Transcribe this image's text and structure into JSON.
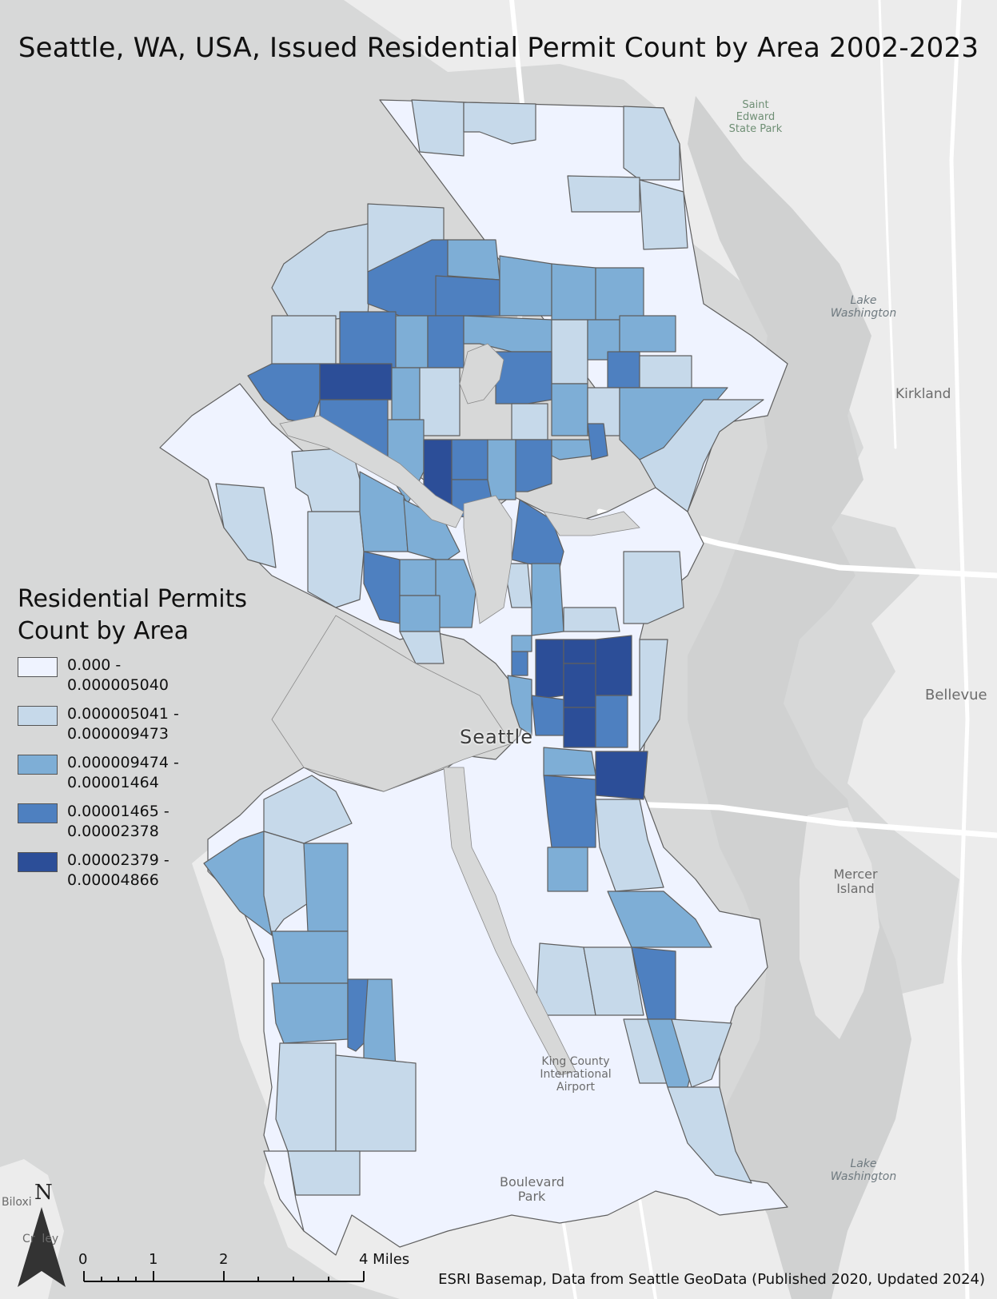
{
  "title": "Seattle, WA, USA, Issued Residential Permit Count by Area 2002-2023",
  "legend": {
    "title_line1": "Residential Permits",
    "title_line2": "Count by Area",
    "classes": [
      {
        "label": "0.000 - 0.000005040",
        "color": "#eff3ff"
      },
      {
        "label_line1": "0.000005041 -",
        "label_line2": "0.000009473",
        "color": "#c6d9ea"
      },
      {
        "label_line1": "0.000009474 -",
        "label_line2": "0.00001464",
        "color": "#7eaed6"
      },
      {
        "label_line1": "0.00001465 -",
        "label_line2": "0.00002378",
        "color": "#4e80c0"
      },
      {
        "label_line1": "0.00002379 -",
        "label_line2": "0.00004866",
        "color": "#2c4e98"
      }
    ]
  },
  "places": {
    "saint_edward": "Saint Edward State Park",
    "lake_washington_north": "Lake Washington",
    "kirkland": "Kirkland",
    "bellevue": "Bellevue",
    "mercer_island": "Mercer Island",
    "lake_washington_south": "Lake Washington",
    "king_county_airport": "King County International Airport",
    "boulevard_park": "Boulevard Park",
    "biloxi": "Biloxi",
    "burien_fragment": "Cr  ley",
    "seattle": "Seattle"
  },
  "north_arrow": {
    "letter": "N"
  },
  "scale_bar": {
    "ticks": [
      "0",
      "1",
      "2",
      "4 Miles"
    ]
  },
  "credit": "ESRI Basemap, Data from Seattle GeoData (Published 2020, Updated 2024)",
  "colors": {
    "water": "#d7d8d8",
    "land": "#ececec",
    "highway": "#ffffff",
    "boundary": "#5a5a5a"
  }
}
